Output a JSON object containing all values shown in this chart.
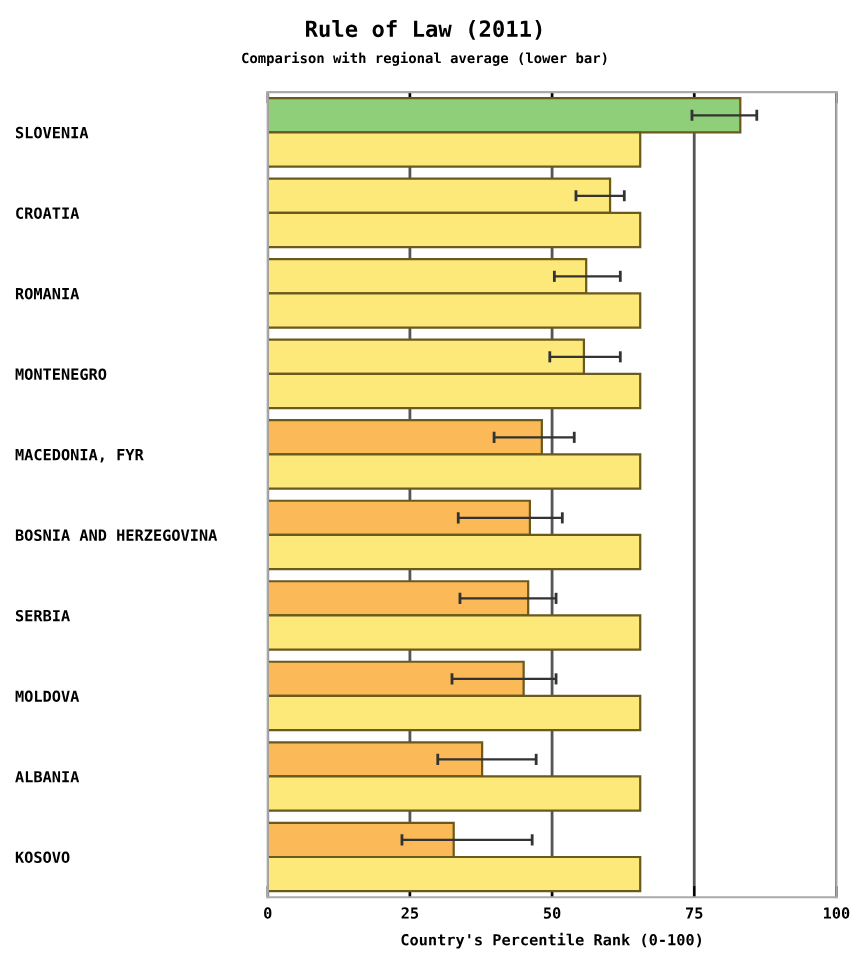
{
  "chart_data": {
    "type": "bar",
    "orientation": "horizontal",
    "title": "Rule of Law (2011)",
    "subtitle": "Comparison with regional average (lower bar)",
    "xlabel": "Country's Percentile Rank (0-100)",
    "categories": [
      "SLOVENIA",
      "CROATIA",
      "ROMANIA",
      "MONTENEGRO",
      "MACEDONIA, FYR",
      "BOSNIA AND HERZEGOVINA",
      "SERBIA",
      "MOLDOVA",
      "ALBANIA",
      "KOSOVO"
    ],
    "series": [
      {
        "colors": [
          "#8fcf7a",
          "#fce97a",
          "#fce97a",
          "#fce97a",
          "#fbb957",
          "#fbb957",
          "#fbb957",
          "#fbb957",
          "#fbb957",
          "#fbb957"
        ],
        "values": [
          83.1,
          60.2,
          56.0,
          55.6,
          48.2,
          46.1,
          45.8,
          45.0,
          37.7,
          32.7
        ],
        "errors": [
          [
            74.6,
            86.0
          ],
          [
            54.2,
            62.7
          ],
          [
            50.4,
            62.0
          ],
          [
            49.6,
            62.0
          ],
          [
            39.8,
            53.9
          ],
          [
            33.5,
            51.8
          ],
          [
            33.8,
            50.7
          ],
          [
            32.4,
            50.7
          ],
          [
            29.9,
            47.2
          ],
          [
            23.6,
            46.5
          ]
        ]
      },
      {
        "color": "#fce97a",
        "values": [
          65.5,
          65.5,
          65.5,
          65.5,
          65.5,
          65.5,
          65.5,
          65.5,
          65.5,
          65.5
        ]
      }
    ],
    "xlim": [
      0,
      100
    ],
    "xticks": [
      0,
      25,
      50,
      75,
      100
    ],
    "grid": "x"
  }
}
